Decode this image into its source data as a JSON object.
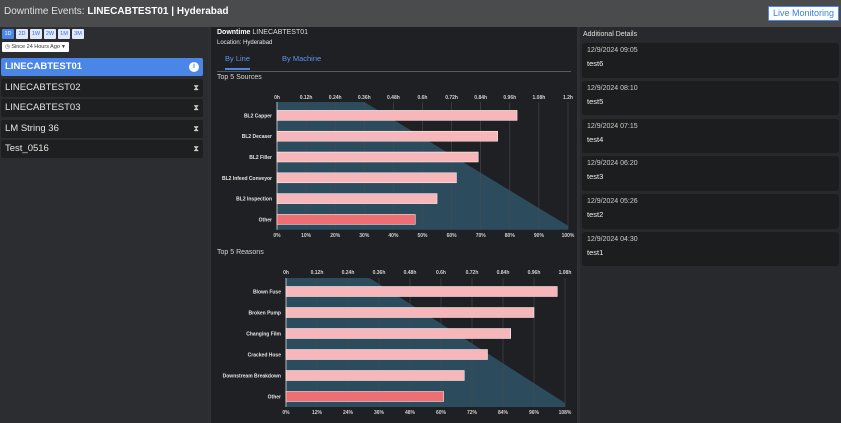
{
  "header": {
    "prefix": "Downtime Events:",
    "title": "LINECABTEST01 | Hyderabad",
    "live_button": "Live Monitoring"
  },
  "sidebar": {
    "ranges": [
      "1D",
      "2D",
      "1W",
      "2W",
      "1M",
      "3M"
    ],
    "active_range": "1D",
    "since": "Since 24 Hours Ago",
    "lines": [
      {
        "label": "LINECABTEST01",
        "icon": "info-icon",
        "active": true
      },
      {
        "label": "LINECABTEST02",
        "icon": "hourglass-icon",
        "active": false
      },
      {
        "label": "LINECABTEST03",
        "icon": "hourglass-icon",
        "active": false
      },
      {
        "label": "LM String 36",
        "icon": "hourglass-icon",
        "active": false
      },
      {
        "label": "Test_0516",
        "icon": "hourglass-icon",
        "active": false
      }
    ]
  },
  "main": {
    "heading_bold": "Downtime",
    "heading_rest": "LINECABTEST01",
    "location": "Location: Hyderabad",
    "tabs": [
      {
        "label": "By Line",
        "active": true
      },
      {
        "label": "By Machine",
        "active": false
      }
    ],
    "sources_title": "Top 5 Sources",
    "reasons_title": "Top 5 Reasons"
  },
  "colors": {
    "bar": "#f7b6b9",
    "bar_other": "#ee6f73",
    "area": "#2f5366",
    "accent": "#4a86e8"
  },
  "chart_data": [
    {
      "type": "bar",
      "orientation": "horizontal",
      "title": "Top 5 Sources",
      "categories": [
        "BL2 Capper",
        "BL2 Decaser",
        "BL2 Filler",
        "BL2 Infeed Conveyor",
        "BL2 Inspection",
        "Other"
      ],
      "values": [
        0.99,
        0.91,
        0.83,
        0.74,
        0.66,
        0.57
      ],
      "x_ticks": [
        "0h",
        "0.12h",
        "0.24h",
        "0.36h",
        "0.48h",
        "0.6h",
        "0.72h",
        "0.84h",
        "0.96h",
        "1.08h",
        "1.2h"
      ],
      "xlim": [
        0,
        1.2
      ],
      "pareto_ticks": [
        "0%",
        "10%",
        "20%",
        "30%",
        "40%",
        "50%",
        "60%",
        "70%",
        "80%",
        "90%",
        "100%"
      ],
      "grid": true
    },
    {
      "type": "bar",
      "orientation": "horizontal",
      "title": "Top 5 Reasons",
      "categories": [
        "Blown Fuse",
        "Broken Pump",
        "Changing Film",
        "Cracked Hose",
        "Downstream Breakdown",
        "Other"
      ],
      "values": [
        1.05,
        0.96,
        0.87,
        0.78,
        0.69,
        0.61
      ],
      "x_ticks": [
        "0h",
        "0.12h",
        "0.24h",
        "0.36h",
        "0.48h",
        "0.6h",
        "0.72h",
        "0.84h",
        "0.96h",
        "1.08h"
      ],
      "xlim": [
        0,
        1.08
      ],
      "pareto_ticks": [
        "0%",
        "12%",
        "24%",
        "36%",
        "48%",
        "60%",
        "72%",
        "84%",
        "96%",
        "108%"
      ],
      "grid": true
    }
  ],
  "details": {
    "title": "Additional Details",
    "items": [
      {
        "time": "12/9/2024 09:05",
        "name": "test6"
      },
      {
        "time": "12/9/2024 08:10",
        "name": "test5"
      },
      {
        "time": "12/9/2024 07:15",
        "name": "test4"
      },
      {
        "time": "12/9/2024 06:20",
        "name": "test3"
      },
      {
        "time": "12/9/2024 05:26",
        "name": "test2"
      },
      {
        "time": "12/9/2024 04:30",
        "name": "test1"
      }
    ]
  }
}
